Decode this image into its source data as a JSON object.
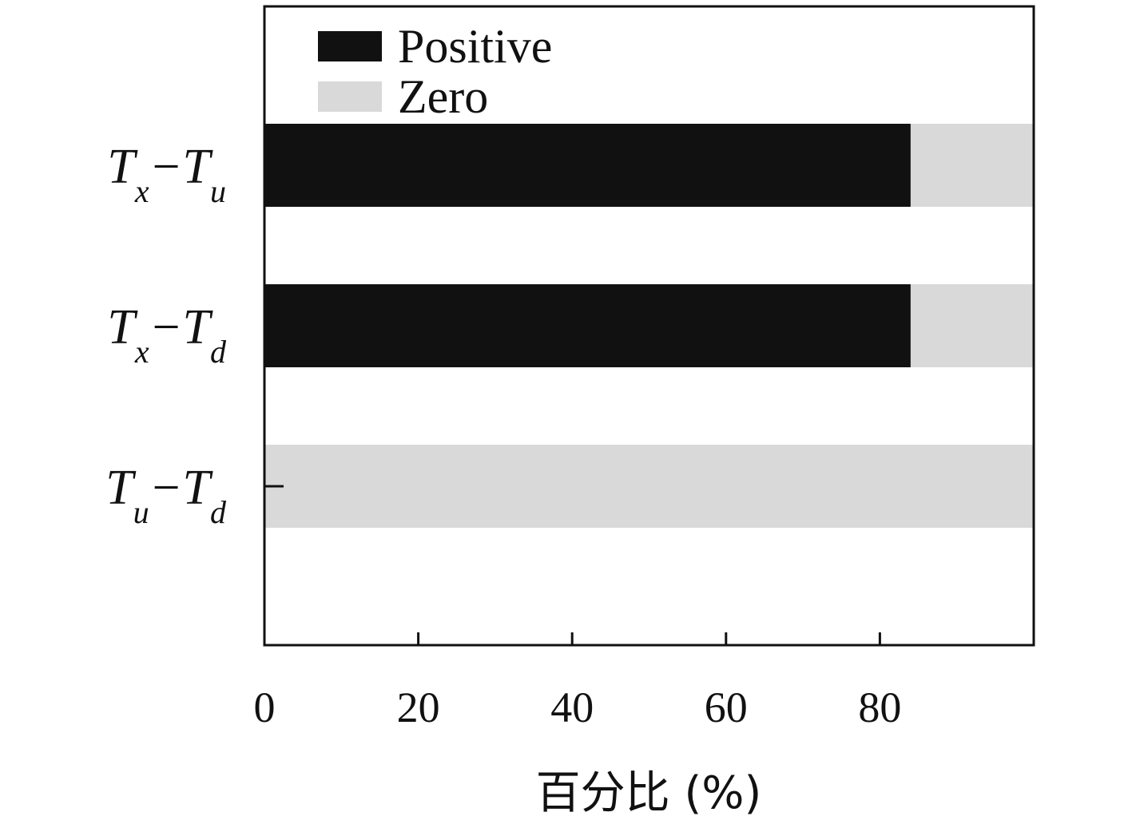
{
  "chart_data": {
    "type": "bar",
    "orientation": "horizontal",
    "stacked": true,
    "categories": [
      {
        "var1": "T",
        "sub1": "x",
        "var2": "T",
        "sub2": "u"
      },
      {
        "var1": "T",
        "sub1": "x",
        "var2": "T",
        "sub2": "d"
      },
      {
        "var1": "T",
        "sub1": "u",
        "var2": "T",
        "sub2": "d"
      }
    ],
    "series": [
      {
        "name": "Positive",
        "values": [
          84,
          84,
          0
        ],
        "color": "#111111"
      },
      {
        "name": "Zero",
        "values": [
          16,
          16,
          100
        ],
        "color": "#d9d9d9"
      }
    ],
    "xlabel": "百分比 (%)",
    "ylabel": "",
    "xlim": [
      0,
      100
    ],
    "xticks": [
      0,
      20,
      40,
      60,
      80
    ],
    "legend_position": "top-left",
    "grid": false
  }
}
